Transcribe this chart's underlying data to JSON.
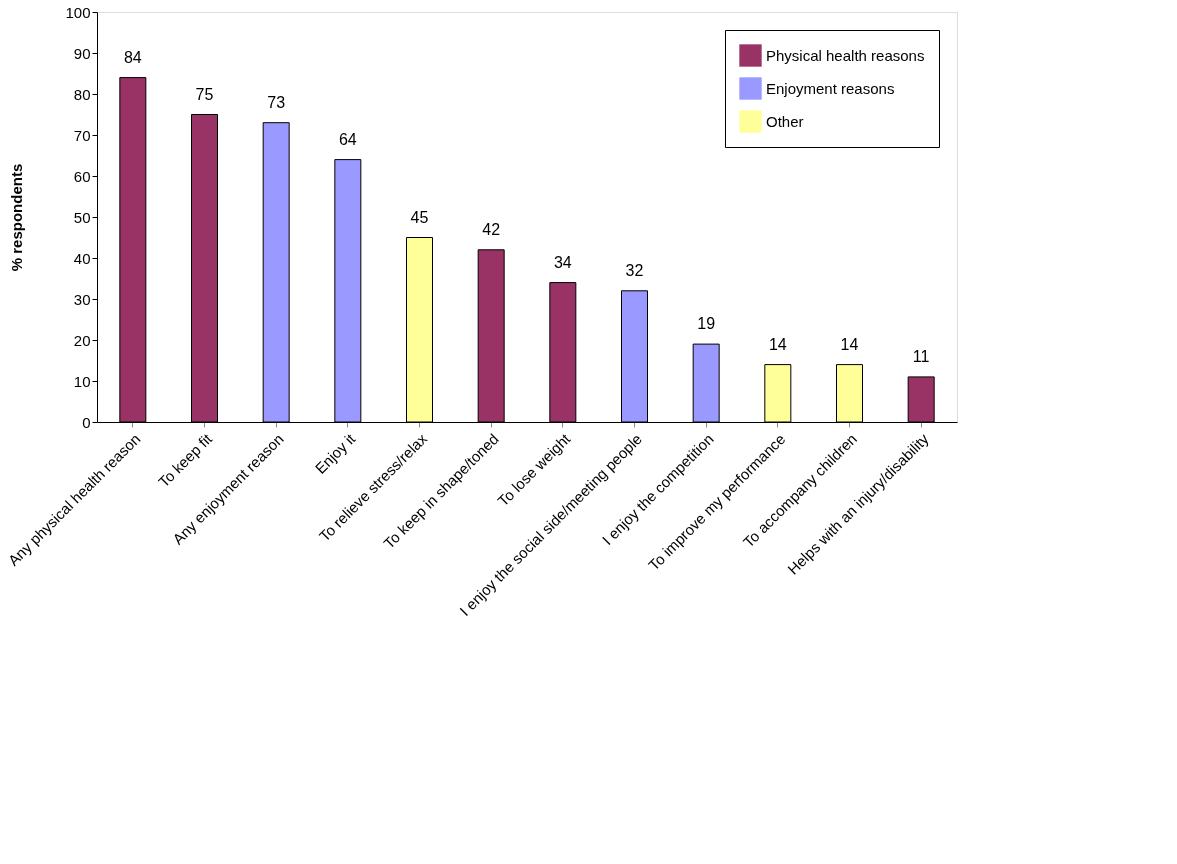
{
  "chart_data": {
    "type": "bar",
    "ylabel": "% respondents",
    "categories": [
      "Any physical health reason",
      "To keep fit",
      "Any enjoyment reason",
      "Enjoy it",
      "To relieve stress/relax",
      "To keep in shape/toned",
      "To lose weight",
      "I enjoy the social side/meeting people",
      "I enjoy the competition",
      "To improve my performance",
      "To accompany children",
      "Helps with an injury/disability"
    ],
    "series": [
      {
        "name": "Physical health reasons",
        "color": "#993366",
        "values": [
          84,
          75,
          null,
          null,
          null,
          42,
          34,
          null,
          null,
          null,
          null,
          11
        ]
      },
      {
        "name": "Enjoyment reasons",
        "color": "#9999ff",
        "values": [
          null,
          null,
          73,
          64,
          null,
          null,
          null,
          32,
          19,
          null,
          null,
          null
        ]
      },
      {
        "name": "Other",
        "color": "#ffff99",
        "values": [
          null,
          null,
          null,
          null,
          45,
          null,
          null,
          null,
          null,
          14,
          14,
          null
        ]
      }
    ],
    "ylim": [
      0,
      100
    ],
    "yticks": [
      0,
      10,
      20,
      30,
      40,
      50,
      60,
      70,
      80,
      90,
      100
    ],
    "data_labels": true,
    "grid": false,
    "legend": "top right"
  }
}
